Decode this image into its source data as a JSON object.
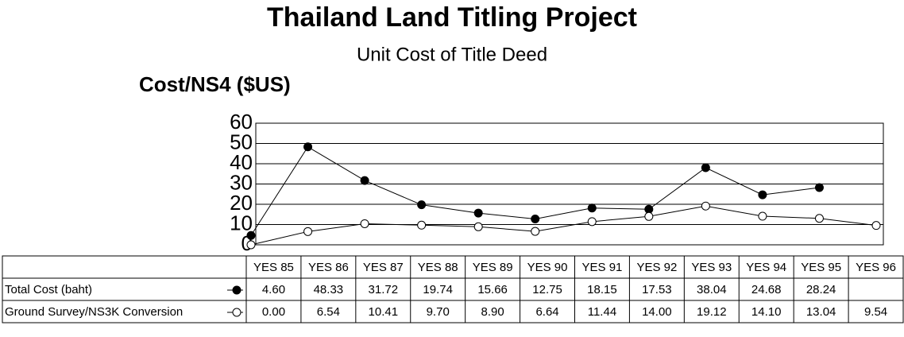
{
  "chart_data": {
    "type": "line",
    "title": "Thailand Land Titling Project",
    "subtitle": "Unit Cost of Title Deed",
    "y_label": "Cost/NS4 ($US)",
    "categories": [
      "YES 85",
      "YES 86",
      "YES 87",
      "YES 88",
      "YES 89",
      "YES 90",
      "YES 91",
      "YES 92",
      "YES 93",
      "YES 94",
      "YES 95",
      "YES 96"
    ],
    "series": [
      {
        "name": "Total Cost (baht)",
        "color": "#000000",
        "marker": "filled",
        "values": [
          4.6,
          48.33,
          31.72,
          19.74,
          15.66,
          12.75,
          18.15,
          17.53,
          38.04,
          24.68,
          28.24,
          null
        ],
        "value_labels": [
          "4.60",
          "48.33",
          "31.72",
          "19.74",
          "15.66",
          "12.75",
          "18.15",
          "17.53",
          "38.04",
          "24.68",
          "28.24",
          null
        ]
      },
      {
        "name": "Ground Survey/NS3K Conversion",
        "color": "#000000",
        "marker": "hollow",
        "values": [
          0,
          6.54,
          10.41,
          9.7,
          8.9,
          6.64,
          11.44,
          14,
          19.12,
          14.1,
          13.04,
          9.54
        ],
        "value_labels": [
          "0.00",
          "6.54",
          "10.41",
          "9.70",
          "8.90",
          "6.64",
          "11.44",
          "14.00",
          "19.12",
          "14.10",
          "13.04",
          "9.54"
        ]
      }
    ],
    "ylim": [
      0,
      60
    ],
    "yticks": [
      0,
      10,
      20,
      30,
      40,
      50,
      60
    ],
    "grid": true
  }
}
